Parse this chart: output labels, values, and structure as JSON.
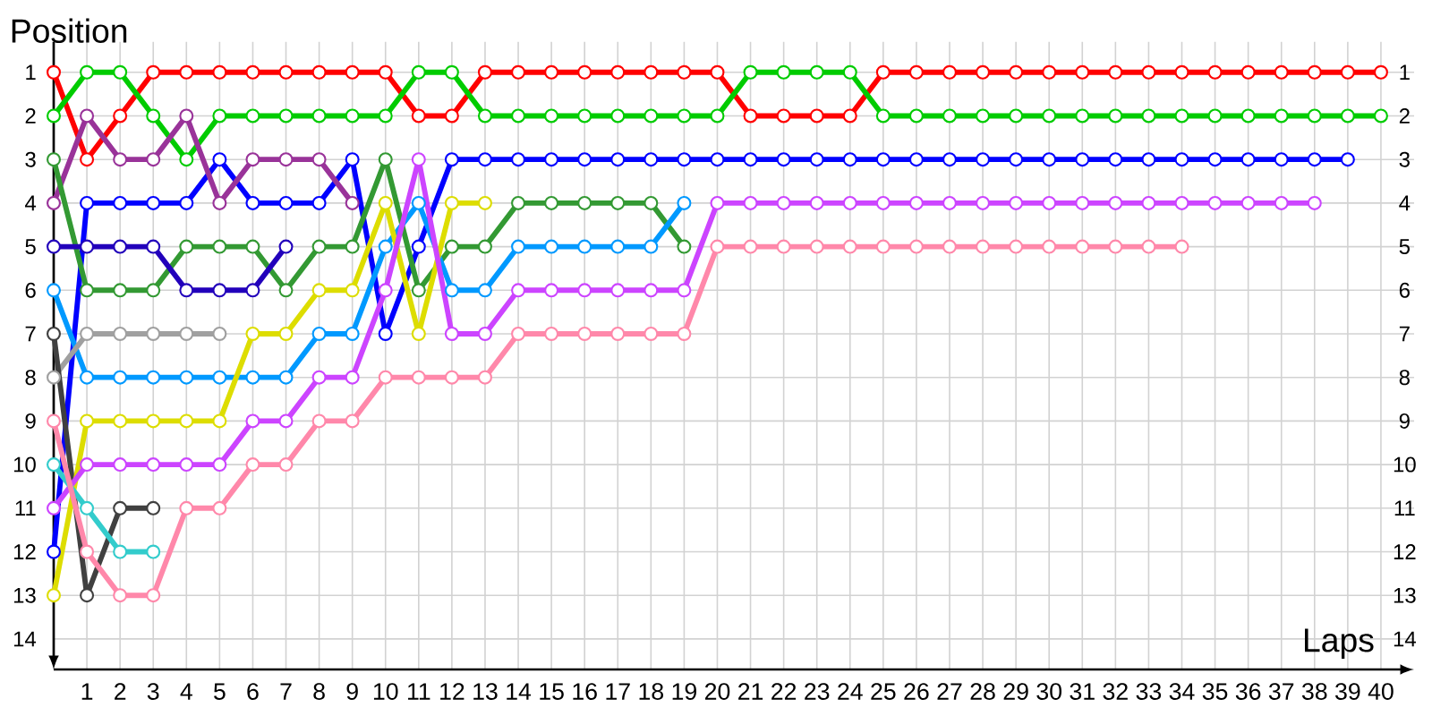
{
  "chart_data": {
    "type": "line",
    "xlabel": "Laps",
    "ylabel": "Position",
    "x": [
      0,
      1,
      2,
      3,
      4,
      5,
      6,
      7,
      8,
      9,
      10,
      11,
      12,
      13,
      14,
      15,
      16,
      17,
      18,
      19,
      20,
      21,
      22,
      23,
      24,
      25,
      26,
      27,
      28,
      29,
      30,
      31,
      32,
      33,
      34,
      35,
      36,
      37,
      38,
      39,
      40
    ],
    "xlim": [
      0,
      41
    ],
    "xticks": [
      1,
      2,
      3,
      4,
      5,
      6,
      7,
      8,
      9,
      10,
      11,
      12,
      13,
      14,
      15,
      16,
      17,
      18,
      19,
      20,
      21,
      22,
      23,
      24,
      25,
      26,
      27,
      28,
      29,
      30,
      31,
      32,
      33,
      34,
      35,
      36,
      37,
      38,
      39,
      40
    ],
    "ylim": [
      14.7,
      0.3
    ],
    "yticks": [
      1,
      2,
      3,
      4,
      5,
      6,
      7,
      8,
      9,
      10,
      11,
      12,
      13,
      14
    ],
    "y2lim": [
      14.7,
      0.3
    ],
    "y2ticks": [
      1,
      2,
      3,
      4,
      5,
      6,
      7,
      8,
      9,
      10,
      11,
      12,
      13,
      14
    ],
    "grid": true,
    "marker": "circle",
    "line_style": "solid",
    "series": [
      {
        "color": "#ff0000",
        "values": [
          1,
          3,
          2,
          1,
          1,
          1,
          1,
          1,
          1,
          1,
          1,
          2,
          2,
          1,
          1,
          1,
          1,
          1,
          1,
          1,
          1,
          2,
          2,
          2,
          2,
          1,
          1,
          1,
          1,
          1,
          1,
          1,
          1,
          1,
          1,
          1,
          1,
          1,
          1,
          1,
          1
        ]
      },
      {
        "color": "#00cc00",
        "values": [
          2,
          1,
          1,
          2,
          3,
          2,
          2,
          2,
          2,
          2,
          2,
          1,
          1,
          2,
          2,
          2,
          2,
          2,
          2,
          2,
          2,
          1,
          1,
          1,
          1,
          2,
          2,
          2,
          2,
          2,
          2,
          2,
          2,
          2,
          2,
          2,
          2,
          2,
          2,
          2,
          2
        ]
      },
      {
        "color": "#0000ff",
        "values": [
          12,
          4,
          4,
          4,
          4,
          3,
          4,
          4,
          4,
          3,
          7,
          5,
          3,
          3,
          3,
          3,
          3,
          3,
          3,
          3,
          3,
          3,
          3,
          3,
          3,
          3,
          3,
          3,
          3,
          3,
          3,
          3,
          3,
          3,
          3,
          3,
          3,
          3,
          3,
          3,
          null
        ]
      },
      {
        "color": "#993399",
        "values": [
          4,
          2,
          3,
          3,
          2,
          4,
          3,
          3,
          3,
          4,
          null,
          null,
          null,
          null,
          null,
          null,
          null,
          null,
          null,
          null,
          null,
          null,
          null,
          null,
          null,
          null,
          null,
          null,
          null,
          null,
          null,
          null,
          null,
          null,
          null,
          null,
          null,
          null,
          null,
          null,
          null
        ]
      },
      {
        "color": "#339933",
        "values": [
          3,
          6,
          6,
          6,
          5,
          5,
          5,
          6,
          5,
          5,
          3,
          6,
          5,
          5,
          4,
          4,
          4,
          4,
          4,
          5,
          null,
          null,
          null,
          null,
          null,
          null,
          null,
          null,
          null,
          null,
          null,
          null,
          null,
          null,
          null,
          null,
          null,
          null,
          null,
          null,
          null
        ]
      },
      {
        "color": "#2200bb",
        "values": [
          5,
          5,
          5,
          5,
          6,
          6,
          6,
          5,
          null,
          null,
          null,
          null,
          null,
          null,
          null,
          null,
          null,
          null,
          null,
          null,
          null,
          null,
          null,
          null,
          null,
          null,
          null,
          null,
          null,
          null,
          null,
          null,
          null,
          null,
          null,
          null,
          null,
          null,
          null,
          null,
          null
        ]
      },
      {
        "color": "#0099ff",
        "values": [
          6,
          8,
          8,
          8,
          8,
          8,
          8,
          8,
          7,
          7,
          5,
          4,
          6,
          6,
          5,
          5,
          5,
          5,
          5,
          4,
          null,
          null,
          null,
          null,
          null,
          null,
          null,
          null,
          null,
          null,
          null,
          null,
          null,
          null,
          null,
          null,
          null,
          null,
          null,
          null,
          null
        ]
      },
      {
        "color": "#a0a0a0",
        "values": [
          8,
          7,
          7,
          7,
          7,
          7,
          null,
          null,
          null,
          null,
          null,
          null,
          null,
          null,
          null,
          null,
          null,
          null,
          null,
          null,
          null,
          null,
          null,
          null,
          null,
          null,
          null,
          null,
          null,
          null,
          null,
          null,
          null,
          null,
          null,
          null,
          null,
          null,
          null,
          null,
          null
        ]
      },
      {
        "color": "#404040",
        "values": [
          7,
          13,
          11,
          11,
          null,
          null,
          null,
          null,
          null,
          null,
          null,
          null,
          null,
          null,
          null,
          null,
          null,
          null,
          null,
          null,
          null,
          null,
          null,
          null,
          null,
          null,
          null,
          null,
          null,
          null,
          null,
          null,
          null,
          null,
          null,
          null,
          null,
          null,
          null,
          null,
          null
        ]
      },
      {
        "color": "#dddd00",
        "values": [
          13,
          9,
          9,
          9,
          9,
          9,
          7,
          7,
          6,
          6,
          4,
          7,
          4,
          4,
          null,
          null,
          null,
          null,
          null,
          null,
          null,
          null,
          null,
          null,
          null,
          null,
          null,
          null,
          null,
          null,
          null,
          null,
          null,
          null,
          null,
          null,
          null,
          null,
          null,
          null,
          null
        ]
      },
      {
        "color": "#cc44ff",
        "values": [
          11,
          10,
          10,
          10,
          10,
          10,
          9,
          9,
          8,
          8,
          6,
          3,
          7,
          7,
          6,
          6,
          6,
          6,
          6,
          6,
          4,
          4,
          4,
          4,
          4,
          4,
          4,
          4,
          4,
          4,
          4,
          4,
          4,
          4,
          4,
          4,
          4,
          4,
          4,
          null,
          null
        ]
      },
      {
        "color": "#33cccc",
        "values": [
          10,
          11,
          12,
          12,
          null,
          null,
          null,
          null,
          null,
          null,
          null,
          null,
          null,
          null,
          null,
          null,
          null,
          null,
          null,
          null,
          null,
          null,
          null,
          null,
          null,
          null,
          null,
          null,
          null,
          null,
          null,
          null,
          null,
          null,
          null,
          null,
          null,
          null,
          null,
          null,
          null
        ]
      },
      {
        "color": "#ff88aa",
        "values": [
          9,
          12,
          13,
          13,
          11,
          11,
          10,
          10,
          9,
          9,
          8,
          8,
          8,
          8,
          7,
          7,
          7,
          7,
          7,
          7,
          5,
          5,
          5,
          5,
          5,
          5,
          5,
          5,
          5,
          5,
          5,
          5,
          5,
          5,
          5,
          null,
          null,
          null,
          null,
          null,
          null
        ]
      }
    ]
  }
}
